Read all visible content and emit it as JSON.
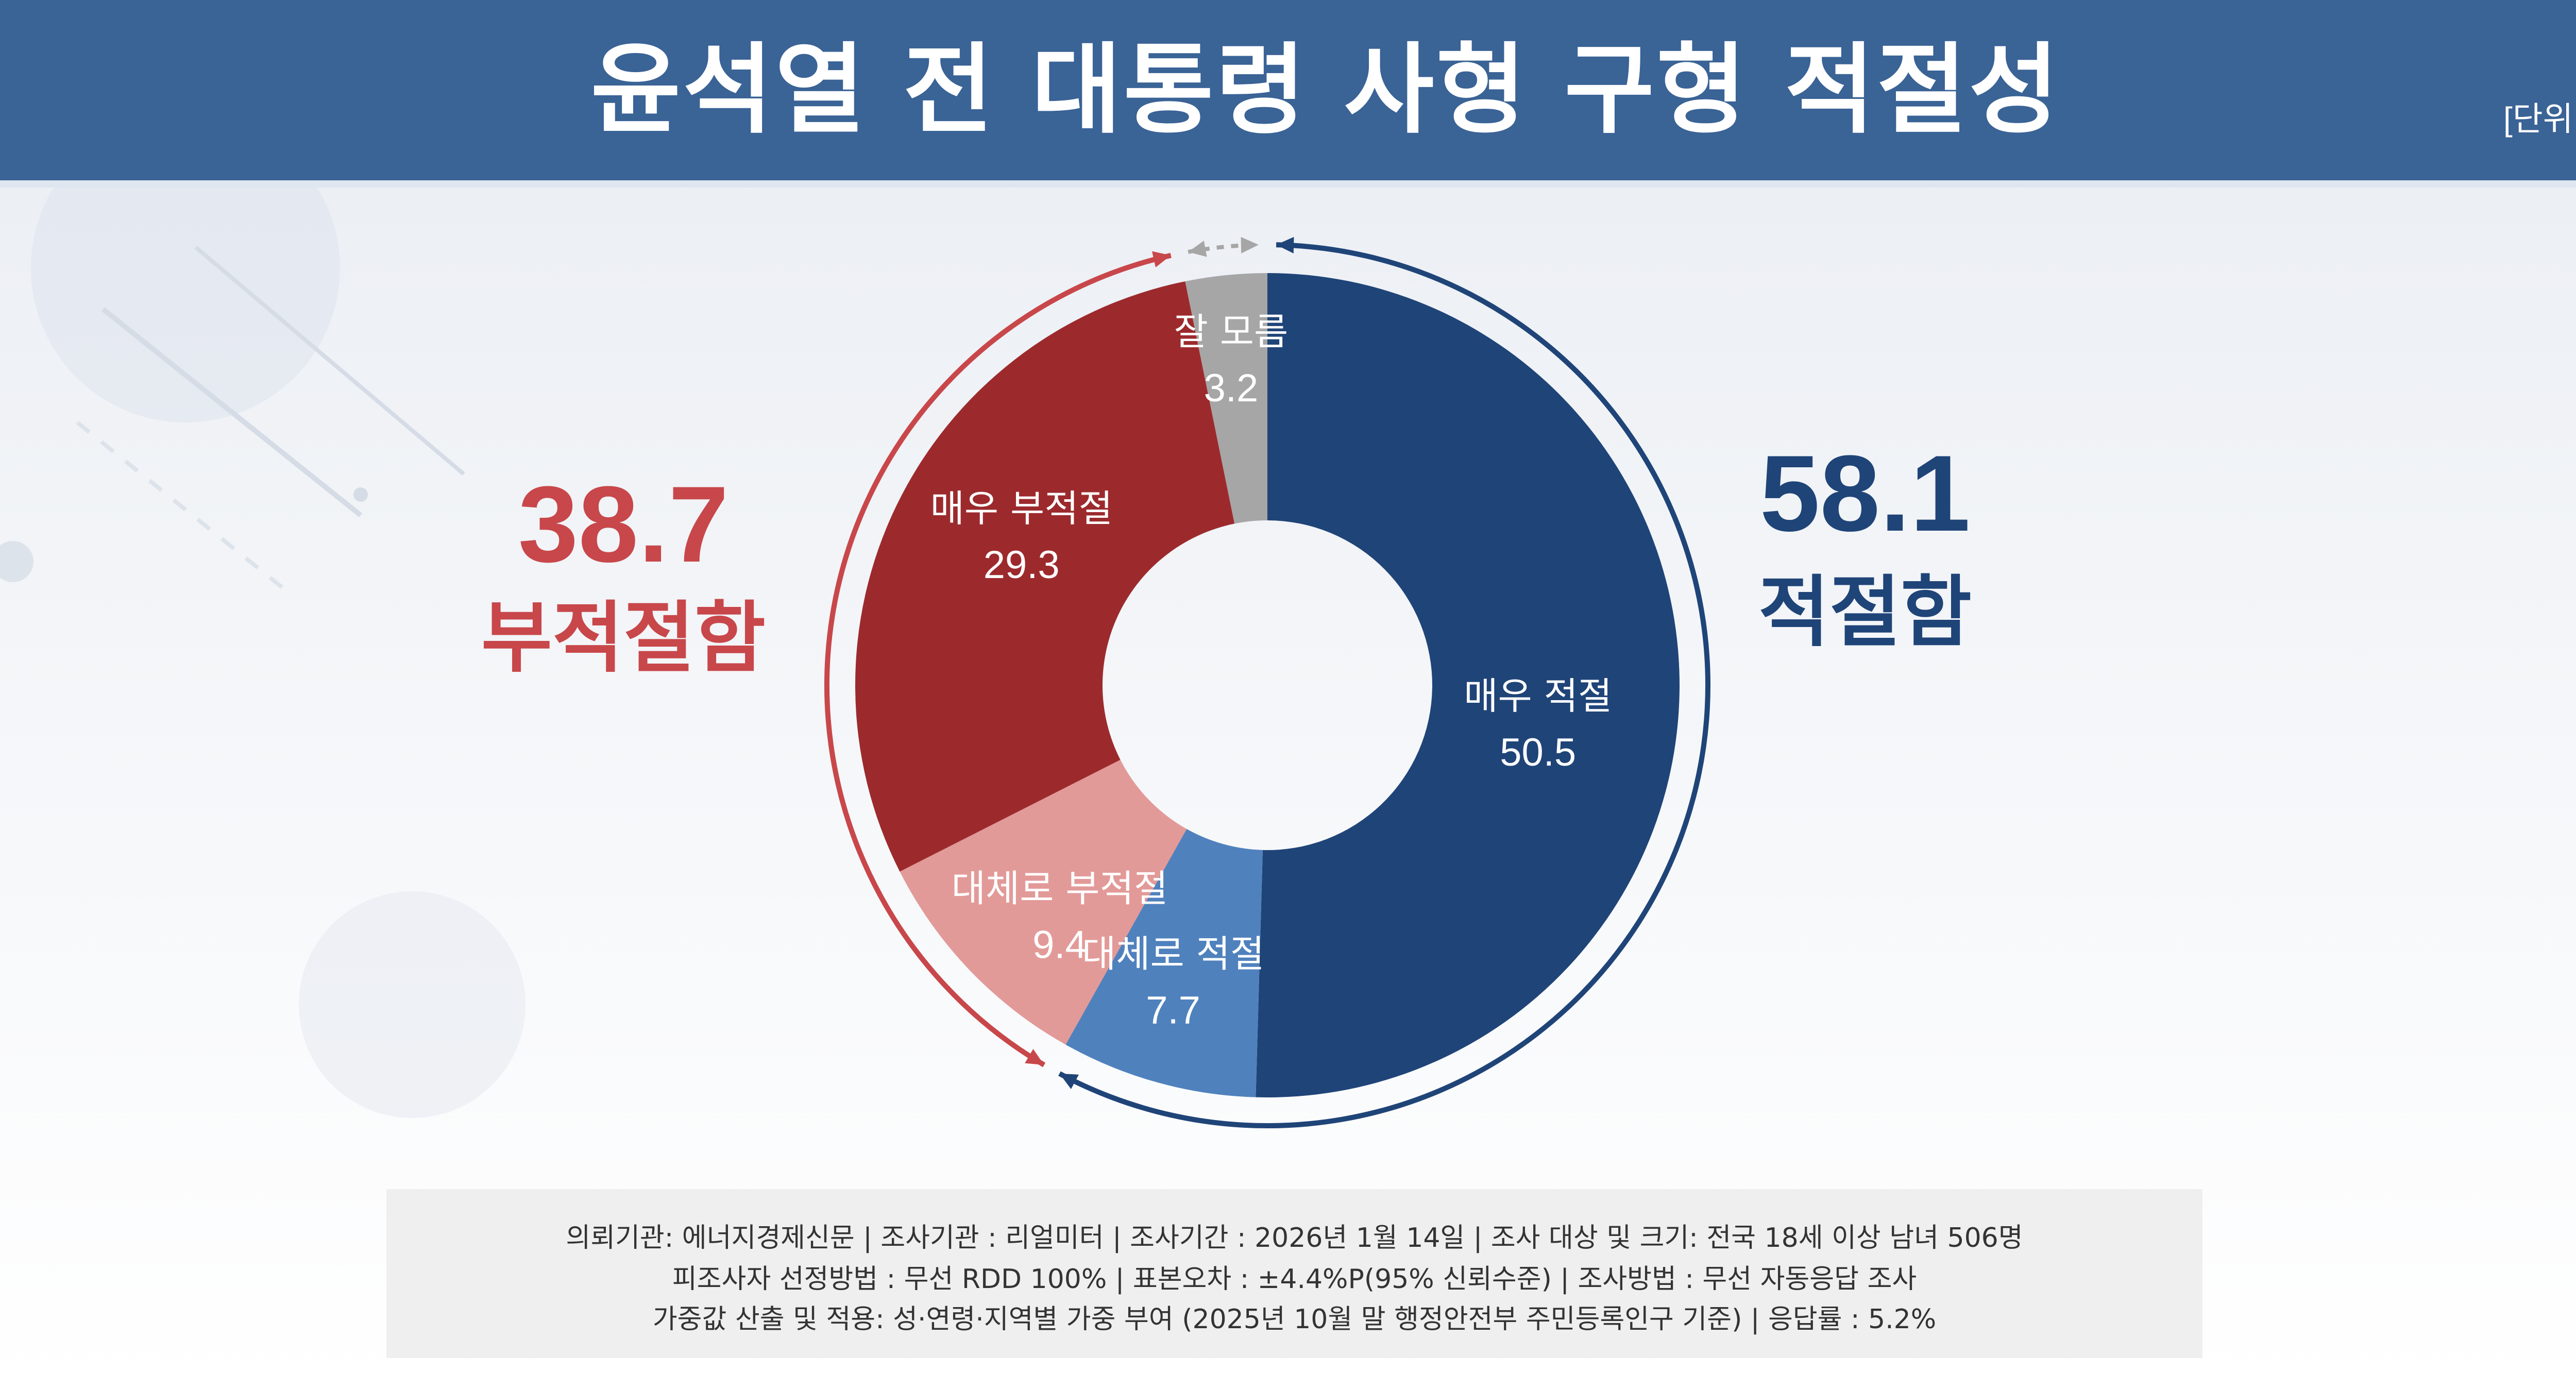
{
  "header": {
    "title": "윤석열 전 대통령 사형 구형 적절성",
    "unit": "[단위 %]"
  },
  "colors": {
    "header_bg": "#3a6396",
    "very_appropriate": "#1f4478",
    "somewhat_appropriate": "#4f81bd",
    "somewhat_inappropriate": "#e29a98",
    "very_inappropriate": "#9c2a2d",
    "dont_know": "#a6a6a6",
    "appropriate_total": "#1f4478",
    "inappropriate_total": "#c8474a"
  },
  "chart_data": {
    "type": "pie",
    "subtype": "donut",
    "start": "top",
    "direction": "clockwise",
    "slices": [
      {
        "label": "매우 적절",
        "value": 50.5,
        "color": "#1f4478",
        "text_color": "#ffffff"
      },
      {
        "label": "대체로 적절",
        "value": 7.7,
        "color": "#4f81bd",
        "text_color": "#ffffff"
      },
      {
        "label": "대체로 부적절",
        "value": 9.4,
        "color": "#e29a98",
        "text_color": "#ffffff"
      },
      {
        "label": "매우 부적절",
        "value": 29.3,
        "color": "#9c2a2d",
        "text_color": "#ffffff"
      },
      {
        "label": "잘 모름",
        "value": 3.2,
        "color": "#a6a6a6",
        "text_color": "#ffffff"
      }
    ],
    "groups": [
      {
        "value": "58.1",
        "label": "적절함",
        "color": "#1f4478",
        "side": "right"
      },
      {
        "value": "38.7",
        "label": "부적절함",
        "color": "#c8474a",
        "side": "left"
      }
    ]
  },
  "notes": [
    "의뢰기관: 에너지경제신문  | 조사기관 : 리얼미터  |  조사기간 : 2026년 1월 14일 | 조사 대상 및 크기: 전국 18세 이상 남녀 506명",
    "피조사자 선정방법 : 무선 RDD 100% | 표본오차 : ±4.4%P(95% 신뢰수준) | 조사방법 : 무선 자동응답 조사",
    "가중값 산출 및 적용: 성·연령·지역별 가중 부여 (2025년 10월 말 행정안전부 주민등록인구 기준) | 응답률 : 5.2%"
  ]
}
